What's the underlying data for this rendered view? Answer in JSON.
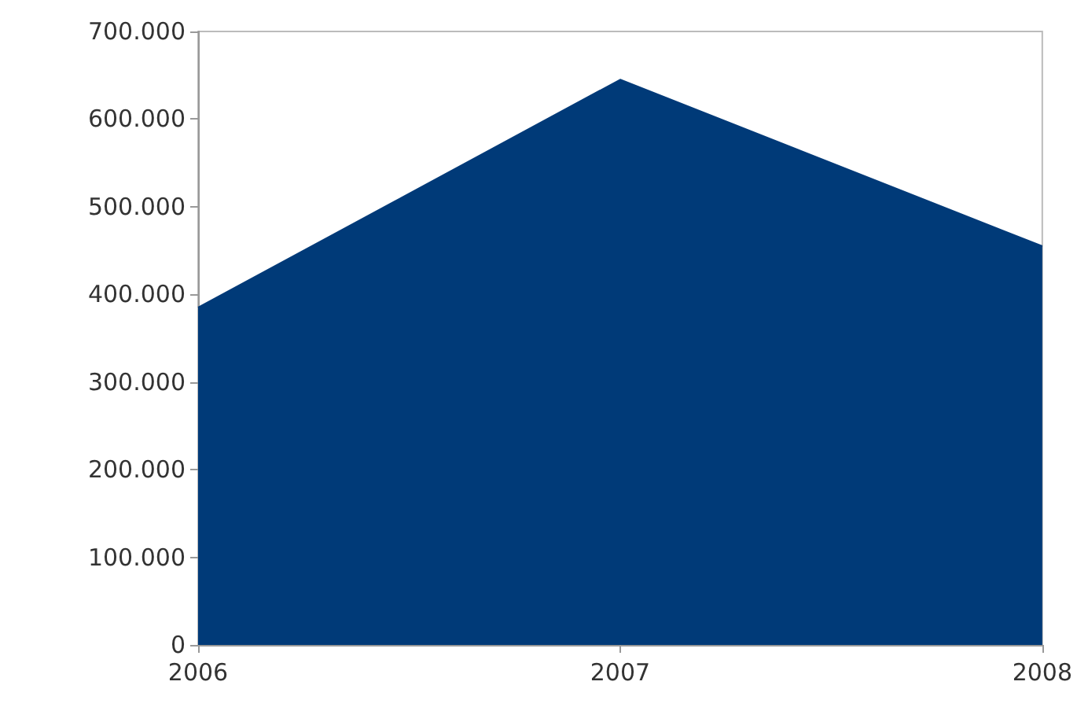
{
  "chart_data": {
    "type": "area",
    "categories": [
      "2006",
      "2007",
      "2008"
    ],
    "series": [
      {
        "color": "#003a78",
        "values": [
          385000,
          645000,
          455000
        ]
      }
    ],
    "ylim": [
      0,
      700000
    ],
    "yticks": [
      {
        "value": 0,
        "label": "0"
      },
      {
        "value": 100000,
        "label": "100.000"
      },
      {
        "value": 200000,
        "label": "200.000"
      },
      {
        "value": 300000,
        "label": "300.000"
      },
      {
        "value": 400000,
        "label": "400.000"
      },
      {
        "value": 500000,
        "label": "500.000"
      },
      {
        "value": 600000,
        "label": "600.000"
      },
      {
        "value": 700000,
        "label": "700.000"
      }
    ],
    "grid": false
  }
}
